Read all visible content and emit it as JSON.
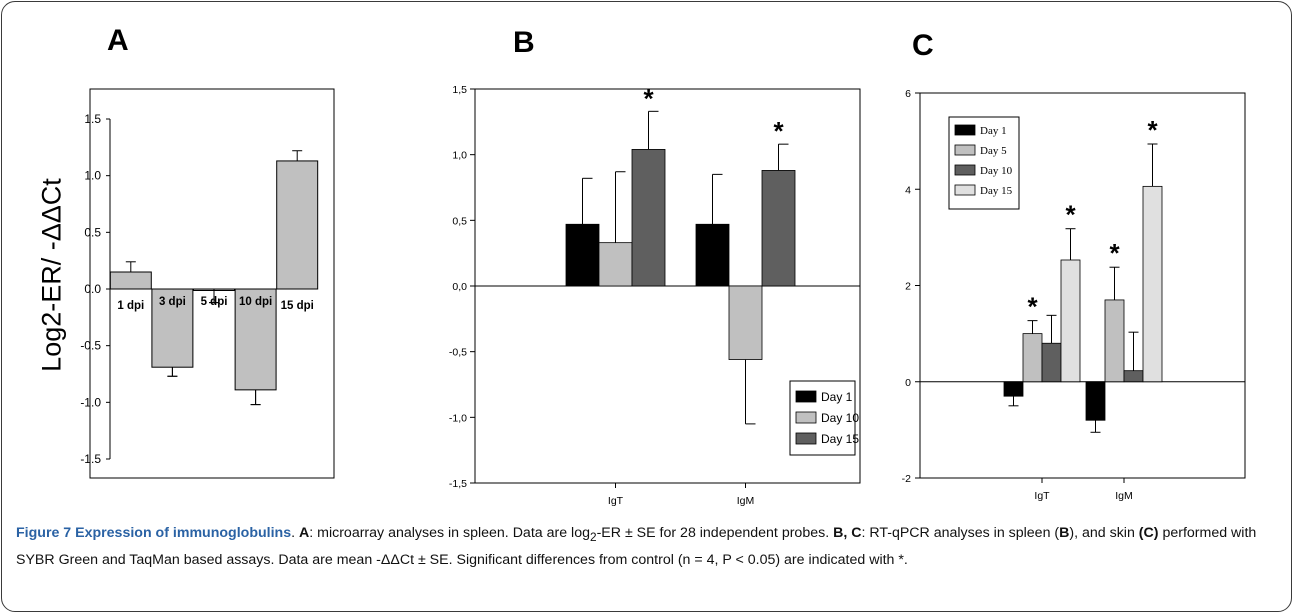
{
  "panels": {
    "a": "A",
    "b": "B",
    "c": "C"
  },
  "ylabel": "Log2-ER/ -ΔΔCt",
  "caption": {
    "title": "Figure 7 Expression of immunoglobulins",
    "t1": ". ",
    "a_label": "A",
    "t2": ": microarray analyses in spleen. Data are log",
    "sub2": "2",
    "t3": "-ER ± SE for 28 independent probes. ",
    "bc_label": "B, C",
    "t4": ": RT-qPCR analyses in spleen (",
    "b_label": "B",
    "t5": "), and skin ",
    "c_label": "(C)",
    "t6": " performed with SYBR Green and TaqMan based assays. Data are mean -ΔΔCt ± SE. Significant differences from control (n = 4, P < 0.05) are indicated with *."
  },
  "colors": {
    "gray_a": "#c0c0c0",
    "black": "#000000",
    "light": "#c0c0c0",
    "dark": "#5f5f5f",
    "lightest": "#e0e0e0"
  },
  "chart_data": [
    {
      "type": "bar",
      "panel": "A",
      "categories": [
        "1 dpi",
        "3 dpi",
        "5 dpi",
        "10 dpi",
        "15 dpi"
      ],
      "values": [
        0.15,
        -0.69,
        -0.01,
        -0.89,
        1.13
      ],
      "errors": [
        0.09,
        0.08,
        0.11,
        0.13,
        0.09
      ],
      "ylim": [
        -1.5,
        1.5
      ],
      "yticks": [
        "-1.5",
        "-1.0",
        "-0.5",
        "0.0",
        "0.5",
        "1.0",
        "1.5"
      ]
    },
    {
      "type": "bar",
      "panel": "B",
      "categories": [
        "IgT",
        "IgM"
      ],
      "series": [
        {
          "name": "Day 1",
          "values": [
            0.47,
            0.47
          ],
          "errors": [
            0.35,
            0.38
          ]
        },
        {
          "name": "Day 10",
          "values": [
            0.33,
            -0.56
          ],
          "errors": [
            0.54,
            0.49
          ]
        },
        {
          "name": "Day 15",
          "values": [
            1.04,
            0.88
          ],
          "errors": [
            0.29,
            0.2
          ]
        }
      ],
      "significant": [
        [
          false,
          false,
          true
        ],
        [
          false,
          false,
          true
        ]
      ],
      "ylim": [
        -1.5,
        1.5
      ],
      "yticks": [
        "-1,5",
        "-1,0",
        "-0,5",
        "0,0",
        "0,5",
        "1,0",
        "1,5"
      ],
      "legend": "bottom-right"
    },
    {
      "type": "bar",
      "panel": "C",
      "categories": [
        "IgT",
        "IgM"
      ],
      "series": [
        {
          "name": "Day 1",
          "values": [
            -0.3,
            -0.8
          ],
          "errors": [
            0.2,
            0.25
          ]
        },
        {
          "name": "Day 5",
          "values": [
            1.0,
            1.7
          ],
          "errors": [
            0.27,
            0.68
          ]
        },
        {
          "name": "Day 10",
          "values": [
            0.8,
            0.23
          ],
          "errors": [
            0.58,
            0.8
          ]
        },
        {
          "name": "Day 15",
          "values": [
            2.53,
            4.06
          ],
          "errors": [
            0.65,
            0.88
          ]
        }
      ],
      "significant": [
        [
          false,
          true,
          false,
          true
        ],
        [
          false,
          true,
          false,
          true
        ]
      ],
      "ylim": [
        -2,
        6
      ],
      "yticks": [
        "-2",
        "0",
        "2",
        "4",
        "6"
      ],
      "legend": "top-left"
    }
  ]
}
